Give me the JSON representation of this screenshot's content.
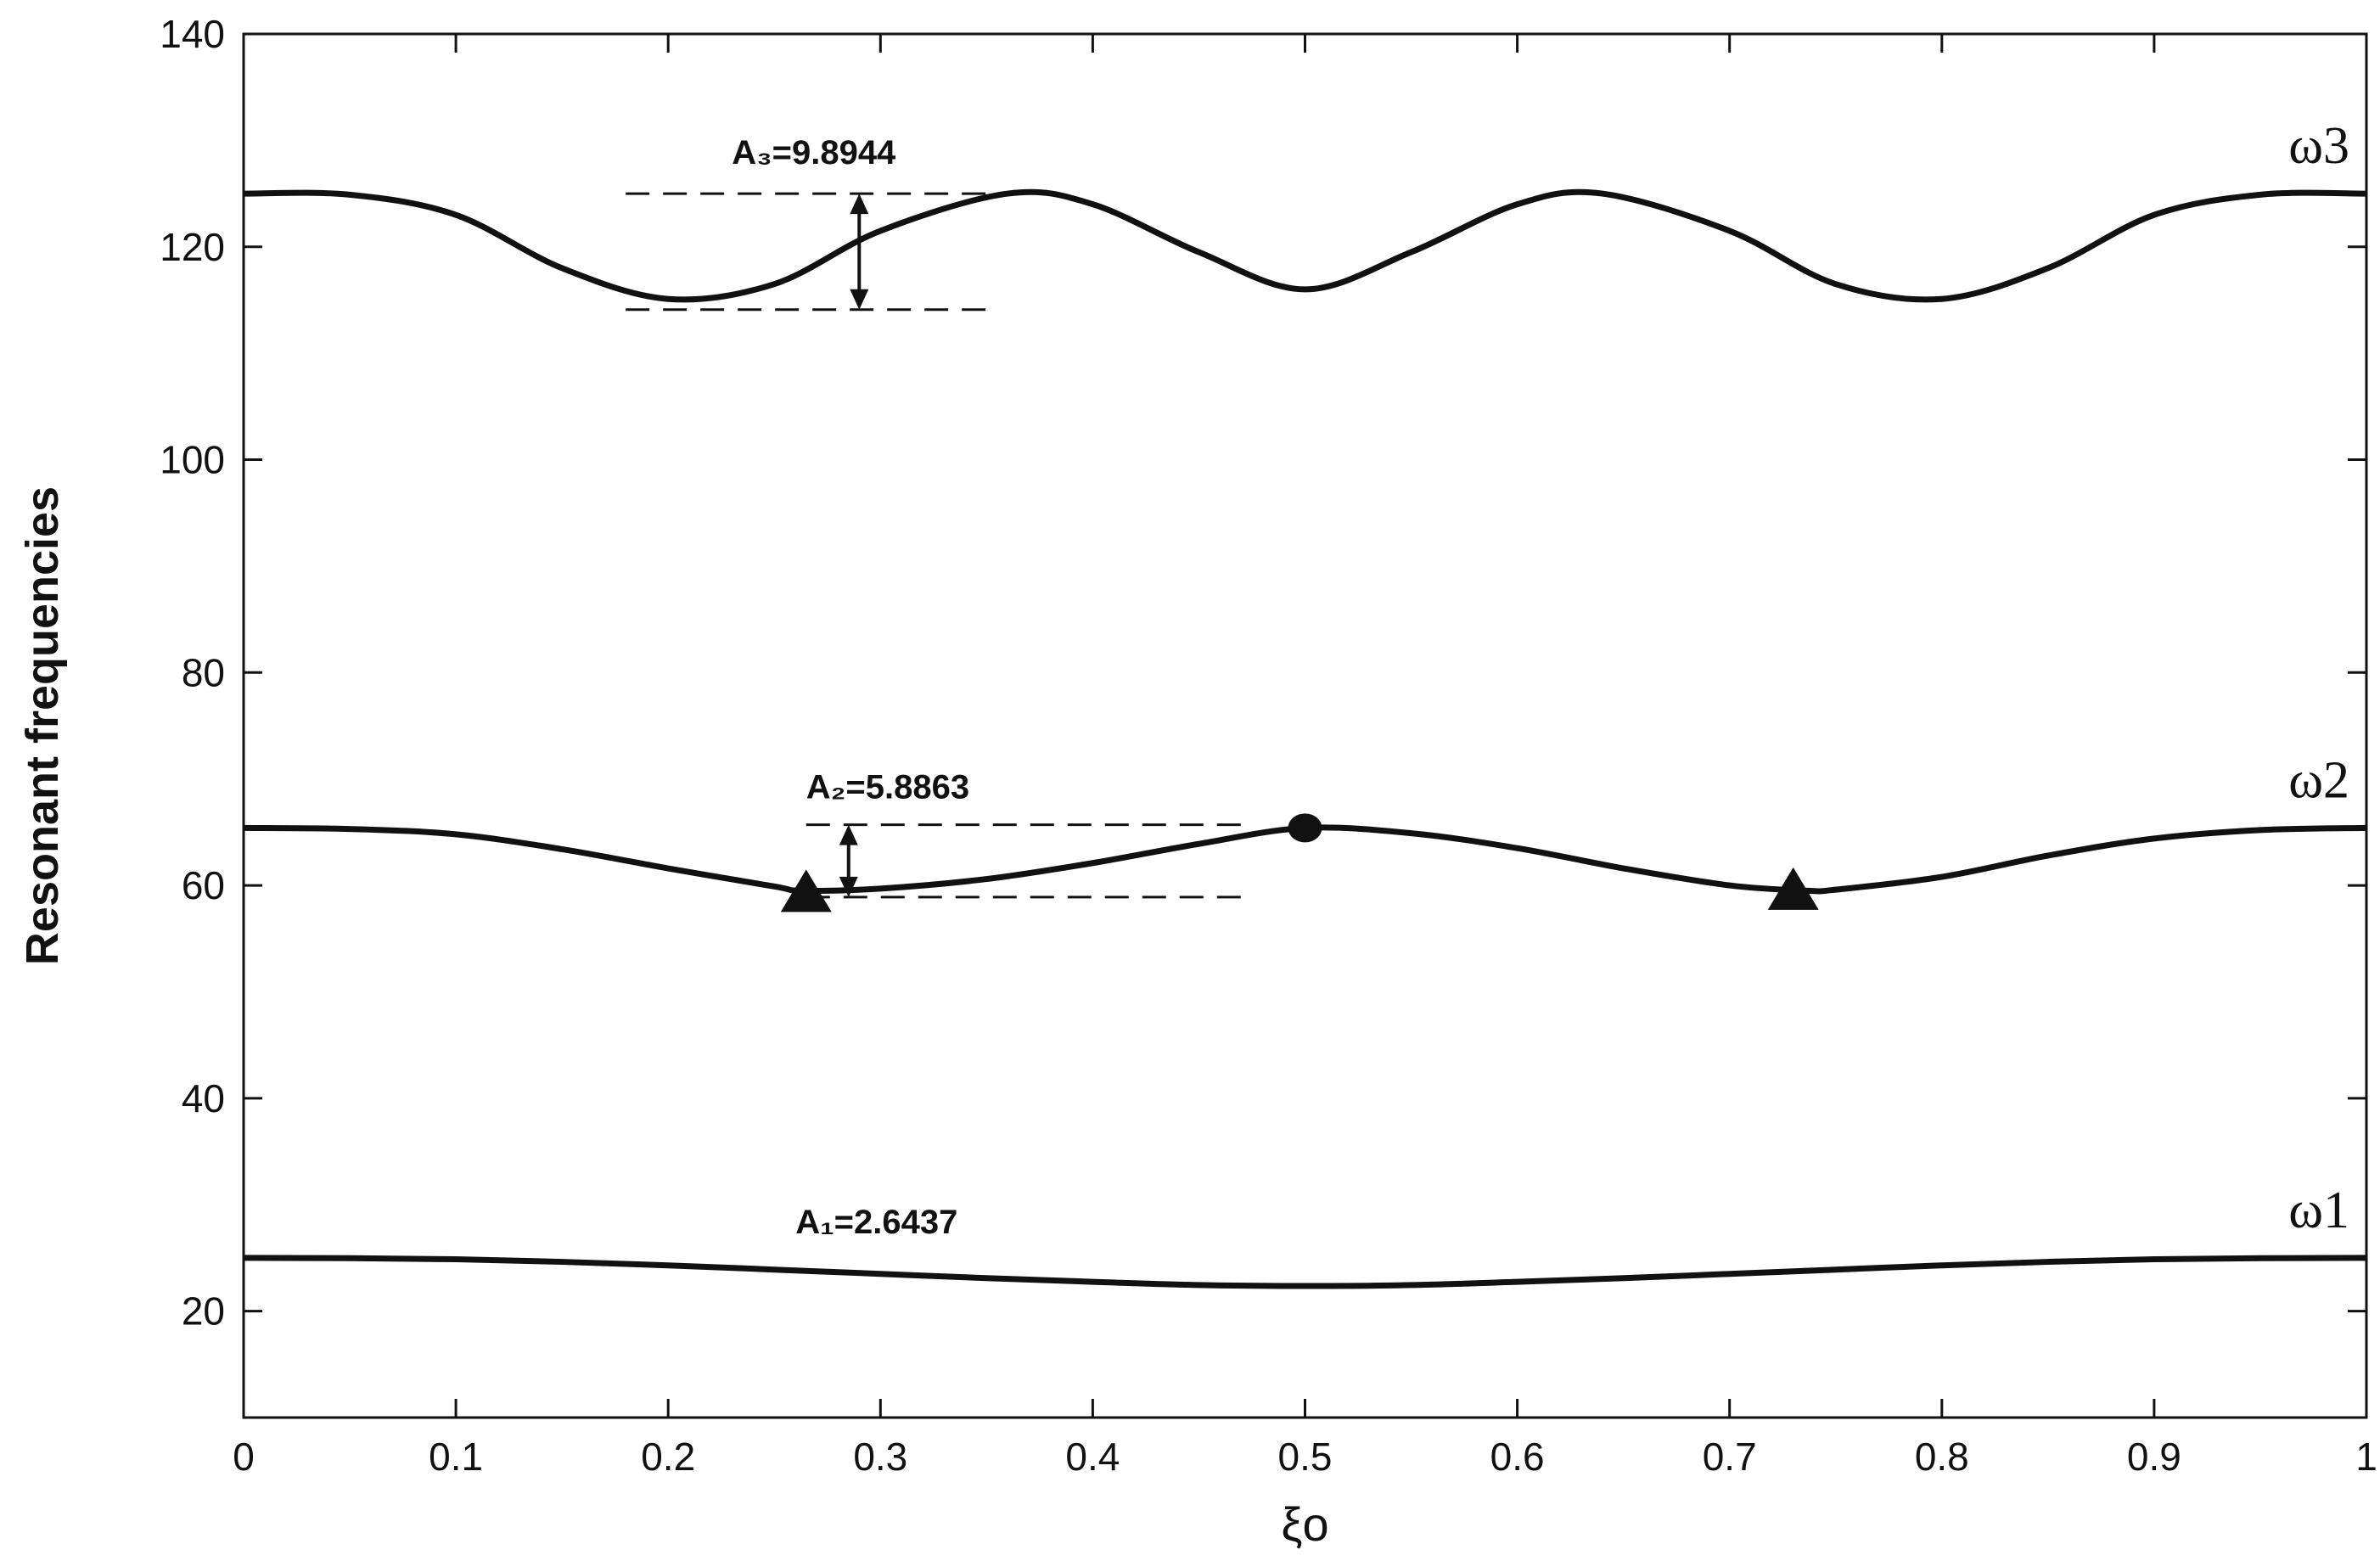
{
  "chart_data": {
    "type": "line",
    "xlabel": "ξo",
    "ylabel": "Resonant frequencies",
    "xlim": [
      0,
      1
    ],
    "ylim": [
      10,
      140
    ],
    "xticks": [
      "0",
      "0.1",
      "0.2",
      "0.3",
      "0.4",
      "0.5",
      "0.6",
      "0.7",
      "0.8",
      "0.9",
      "1"
    ],
    "yticks": [
      "20",
      "40",
      "60",
      "80",
      "100",
      "120",
      "140"
    ],
    "grid": false,
    "series": [
      {
        "name": "ω1",
        "color": "#111111",
        "x": [
          0,
          0.05,
          0.1,
          0.15,
          0.2,
          0.25,
          0.3,
          0.35,
          0.4,
          0.45,
          0.5,
          0.55,
          0.6,
          0.65,
          0.7,
          0.75,
          0.8,
          0.85,
          0.9,
          0.95,
          1
        ],
        "y": [
          25.0,
          24.97,
          24.87,
          24.63,
          24.3,
          23.9,
          23.5,
          23.1,
          22.75,
          22.45,
          22.36,
          22.45,
          22.75,
          23.1,
          23.5,
          23.9,
          24.3,
          24.63,
          24.87,
          24.97,
          25.0
        ]
      },
      {
        "name": "ω2",
        "color": "#111111",
        "x": [
          0,
          0.05,
          0.1,
          0.15,
          0.2,
          0.25,
          0.263,
          0.3,
          0.35,
          0.4,
          0.45,
          0.5,
          0.55,
          0.6,
          0.65,
          0.7,
          0.737,
          0.75,
          0.8,
          0.85,
          0.9,
          0.95,
          1
        ],
        "y": [
          65.4,
          65.3,
          64.8,
          63.4,
          61.6,
          59.9,
          59.5,
          59.7,
          60.6,
          62.1,
          63.9,
          65.4,
          64.9,
          63.5,
          61.6,
          60.0,
          59.5,
          59.6,
          60.8,
          62.8,
          64.4,
          65.2,
          65.4
        ]
      },
      {
        "name": "ω3",
        "color": "#111111",
        "x": [
          0,
          0.05,
          0.1,
          0.15,
          0.2,
          0.25,
          0.3,
          0.36,
          0.4,
          0.45,
          0.5,
          0.55,
          0.6,
          0.64,
          0.7,
          0.75,
          0.8,
          0.85,
          0.9,
          0.95,
          1
        ],
        "y": [
          125.0,
          124.9,
          123.0,
          118.0,
          115.1,
          116.5,
          121.5,
          125.0,
          124.0,
          119.5,
          116.0,
          119.5,
          124.0,
          125.0,
          121.5,
          116.5,
          115.1,
          118.0,
          123.0,
          124.9,
          125.0
        ]
      }
    ],
    "markers": [
      {
        "shape": "triangle",
        "x": 0.265,
        "y": 59.1
      },
      {
        "shape": "circle",
        "x": 0.5,
        "y": 65.4
      },
      {
        "shape": "triangle",
        "x": 0.73,
        "y": 59.3
      }
    ],
    "annotations": [
      {
        "text": "A₁=2.6437",
        "x": 0.26,
        "y": 27.3
      },
      {
        "text": "A₂=5.8863",
        "x": 0.265,
        "y": 68.2
      },
      {
        "text": "A₃=9.8944",
        "x": 0.23,
        "y": 127.8
      }
    ],
    "amplitude_markers": [
      {
        "x_from": 0.265,
        "x_to": 0.47,
        "x_arrow": 0.285,
        "y_high": 65.7,
        "y_low": 58.9
      },
      {
        "x_from": 0.18,
        "x_to": 0.35,
        "x_arrow": 0.29,
        "y_high": 125.0,
        "y_low": 114.1
      }
    ]
  }
}
